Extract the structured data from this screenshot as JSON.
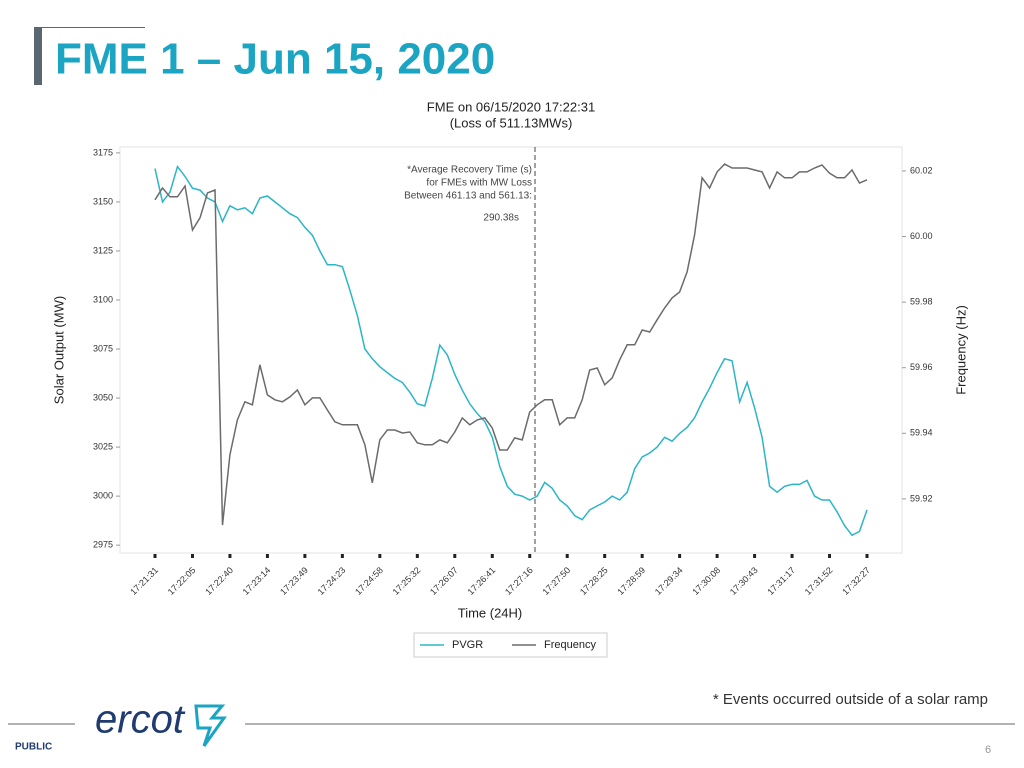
{
  "slide": {
    "title": "FME 1 – Jun 15, 2020",
    "footnote": "* Events occurred outside of a solar ramp",
    "logo": "ercot",
    "classification": "PUBLIC",
    "page_number": "6"
  },
  "chart_data": {
    "type": "line",
    "title": [
      "FME on 06/15/2020 17:22:31",
      "(Loss of 511.13MWs)"
    ],
    "annotation": [
      "*Average Recovery Time (s)",
      "for FMEs with MW Loss",
      "Between 461.13 and 561.13:",
      "290.38s"
    ],
    "x_label": "Time (24H)",
    "y_label": "Solar Output (MW)",
    "y2_label": "Frequency (Hz)",
    "categories": [
      "17:21:31",
      null,
      null,
      null,
      null,
      "17:22:05",
      null,
      null,
      null,
      null,
      "17:22:40",
      null,
      null,
      null,
      null,
      "17:23:14",
      null,
      null,
      null,
      null,
      "17:23:49",
      null,
      null,
      null,
      null,
      "17:24:23",
      null,
      null,
      null,
      null,
      "17:24:58",
      null,
      null,
      null,
      null,
      "17:25:32",
      null,
      null,
      null,
      null,
      "17:26:07",
      null,
      null,
      null,
      null,
      "17:26:41",
      null,
      null,
      null,
      null,
      "17:27:16",
      null,
      null,
      null,
      null,
      "17:27:50",
      null,
      null,
      null,
      null,
      "17:28:25",
      null,
      null,
      null,
      null,
      "17:28:59",
      null,
      null,
      null,
      null,
      "17:29:34",
      null,
      null,
      null,
      null,
      "17:30:08",
      null,
      null,
      null,
      null,
      "17:30:43",
      null,
      null,
      null,
      null,
      "17:31:17",
      null,
      null,
      null,
      null,
      "17:31:52",
      null,
      null,
      null,
      null,
      "17:32:27"
    ],
    "series": [
      {
        "name": "PVGR",
        "color": "#2bb5c8",
        "values": [
          3167,
          3150,
          3155,
          3168,
          3163,
          3157,
          3156,
          3152,
          3150,
          3140,
          3148,
          3146,
          3147,
          3144,
          3152,
          3153,
          3150,
          3147,
          3144,
          3142,
          3137,
          3133,
          3125,
          3118,
          3118,
          3117,
          3105,
          3092,
          3075,
          3070,
          3066,
          3063,
          3060,
          3058,
          3053,
          3047,
          3046,
          3060,
          3077,
          3072,
          3062,
          3054,
          3047,
          3042,
          3038,
          3030,
          3015,
          3005,
          3001,
          3000,
          2998,
          3000,
          3007,
          3004,
          2998,
          2995,
          2990,
          2988,
          2993,
          2995,
          2997,
          3000,
          2998,
          3002,
          3014,
          3020,
          3022,
          3025,
          3030,
          3028,
          3032,
          3035,
          3040,
          3048,
          3055,
          3063,
          3070,
          3069,
          3048,
          3058,
          3045,
          3030,
          3005,
          3002,
          3005,
          3006,
          3006,
          3008,
          3000,
          2998,
          2998,
          2992,
          2985,
          2980,
          2982,
          2993
        ]
      },
      {
        "name": "Frequency",
        "color": "#6b6b6b",
        "axis": "y2",
        "values": [
          60.0112,
          60.0148,
          60.0121,
          60.0121,
          60.0154,
          60.002,
          60.0057,
          60.0133,
          60.0142,
          59.912,
          59.9334,
          59.9441,
          59.9496,
          59.9487,
          59.9609,
          59.9517,
          59.9502,
          59.9496,
          59.9511,
          59.9532,
          59.9487,
          59.9508,
          59.9508,
          59.9471,
          59.9435,
          59.9426,
          59.9426,
          59.9426,
          59.9365,
          59.9249,
          59.938,
          59.941,
          59.941,
          59.9401,
          59.9404,
          59.9371,
          59.9365,
          59.9365,
          59.938,
          59.9371,
          59.9404,
          59.9447,
          59.9426,
          59.9441,
          59.9447,
          59.9416,
          59.9349,
          59.9349,
          59.9386,
          59.938,
          59.9465,
          59.9487,
          59.9502,
          59.9502,
          59.9426,
          59.9447,
          59.9447,
          59.9502,
          59.9593,
          59.9599,
          59.9548,
          59.9569,
          59.9624,
          59.967,
          59.967,
          59.9715,
          59.9709,
          59.9746,
          59.9782,
          59.9813,
          59.9831,
          59.9892,
          60.0005,
          60.0179,
          60.0148,
          60.0197,
          60.0221,
          60.0209,
          60.0209,
          60.0209,
          60.0203,
          60.0197,
          60.0148,
          60.0197,
          60.0179,
          60.0179,
          60.0197,
          60.0197,
          60.0209,
          60.0218,
          60.0193,
          60.0179,
          60.0179,
          60.0203,
          60.0163,
          60.0173
        ]
      }
    ],
    "ylim": [
      2971,
      3178
    ],
    "yticks": [
      2975,
      3000,
      3025,
      3050,
      3075,
      3100,
      3125,
      3150,
      3175
    ],
    "y2lim": [
      59.9035,
      60.0273
    ],
    "y2ticks": [
      59.92,
      59.94,
      59.96,
      59.98,
      {
        "value": 60,
        "label": "60.00"
      },
      60.02
    ],
    "legend": "bottom",
    "grid": false
  }
}
